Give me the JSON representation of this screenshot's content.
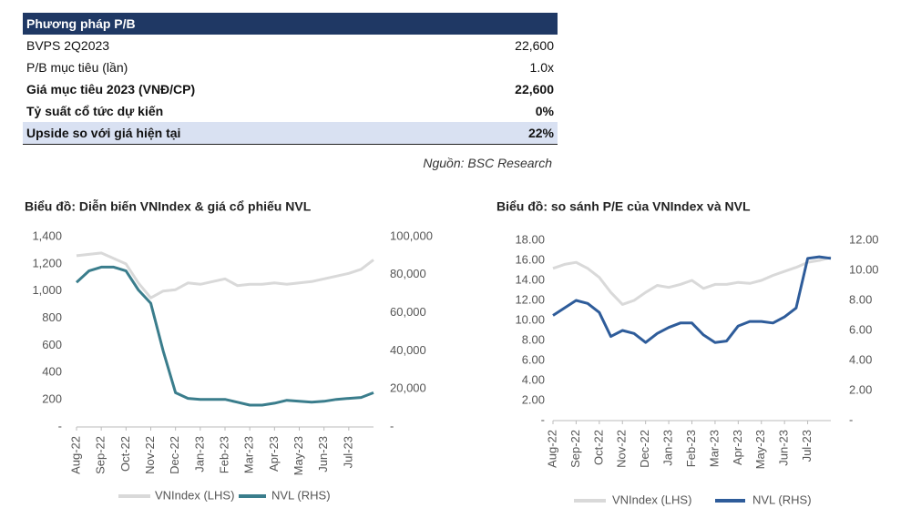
{
  "table": {
    "title": "Phương pháp P/B",
    "rows": [
      {
        "label": "BVPS 2Q2023",
        "value": "22,600",
        "bold": false,
        "highlight": false
      },
      {
        "label": "P/B mục tiêu (lần)",
        "value": "1.0x",
        "bold": false,
        "highlight": false
      },
      {
        "label": "Giá mục tiêu 2023 (VNĐ/CP)",
        "value": "22,600",
        "bold": true,
        "highlight": false
      },
      {
        "label": "Tỷ suất cổ tức dự kiến",
        "value": "0%",
        "bold": true,
        "highlight": false
      },
      {
        "label": "Upside so với giá hiện tại",
        "value": "22%",
        "bold": true,
        "highlight": true
      }
    ],
    "source": "Nguồn: BSC Research"
  },
  "chart_data": [
    {
      "type": "line",
      "title": "Biểu đồ: Diễn biến VNIndex & giá cổ phiếu NVL",
      "categories": [
        "Aug-22",
        null,
        "Sep-22",
        null,
        "Oct-22",
        null,
        "Nov-22",
        null,
        "Dec-22",
        null,
        "Jan-23",
        null,
        "Feb-23",
        null,
        "Mar-23",
        null,
        "Apr-23",
        null,
        "May-23",
        null,
        "Jun-23",
        null,
        "Jul-23",
        null,
        null
      ],
      "ylim": [
        0,
        1400
      ],
      "yticks": [
        {
          "value": 0,
          "label": "-"
        },
        200,
        400,
        600,
        800,
        {
          "value": 1000,
          "label": "1,000"
        },
        {
          "value": 1200,
          "label": "1,200"
        },
        {
          "value": 1400,
          "label": "1,400"
        }
      ],
      "y2lim": [
        0,
        100000
      ],
      "y2ticks": [
        {
          "value": 0,
          "label": "-"
        },
        {
          "value": 20000,
          "label": "20,000"
        },
        {
          "value": 40000,
          "label": "40,000"
        },
        {
          "value": 60000,
          "label": "60,000"
        },
        {
          "value": 80000,
          "label": "80,000"
        },
        {
          "value": 100000,
          "label": "100,000"
        }
      ],
      "series": [
        {
          "name": "VNIndex (LHS)",
          "color": "#d9d9d9",
          "values": [
            1260,
            1270,
            1280,
            1240,
            1200,
            1060,
            950,
            1000,
            1010,
            1060,
            1050,
            1070,
            1090,
            1040,
            1050,
            1050,
            1060,
            1050,
            1060,
            1070,
            1090,
            1110,
            1130,
            1160,
            1230
          ]
        },
        {
          "name": "NVL (RHS)",
          "color": "#3a7d8c",
          "axis": "y2",
          "values": [
            76000,
            82000,
            84000,
            84000,
            82000,
            72000,
            65000,
            40000,
            18000,
            15000,
            14500,
            14500,
            14500,
            13000,
            11500,
            11500,
            12500,
            14000,
            13500,
            13000,
            13500,
            14500,
            15000,
            15500,
            18000
          ]
        }
      ]
    },
    {
      "type": "line",
      "title": "Biểu đồ: so sánh P/E của VNIndex và NVL",
      "categories": [
        "Aug-22",
        null,
        "Sep-22",
        null,
        "Oct-22",
        null,
        "Nov-22",
        null,
        "Dec-22",
        null,
        "Jan-23",
        null,
        "Feb-23",
        null,
        "Mar-23",
        null,
        "Apr-23",
        null,
        "May-23",
        null,
        "Jun-23",
        null,
        "Jul-23",
        null,
        null
      ],
      "ylim": [
        0,
        18
      ],
      "yticks": [
        {
          "value": 0,
          "label": "-"
        },
        {
          "value": 2,
          "label": "2.00"
        },
        {
          "value": 4,
          "label": "4.00"
        },
        {
          "value": 6,
          "label": "6.00"
        },
        {
          "value": 8,
          "label": "8.00"
        },
        {
          "value": 10,
          "label": "10.00"
        },
        {
          "value": 12,
          "label": "12.00"
        },
        {
          "value": 14,
          "label": "14.00"
        },
        {
          "value": 16,
          "label": "16.00"
        },
        {
          "value": 18,
          "label": "18.00"
        }
      ],
      "y2lim": [
        0,
        12
      ],
      "y2ticks": [
        {
          "value": 0,
          "label": "-"
        },
        {
          "value": 2,
          "label": "2.00"
        },
        {
          "value": 4,
          "label": "4.00"
        },
        {
          "value": 6,
          "label": "6.00"
        },
        {
          "value": 8,
          "label": "8.00"
        },
        {
          "value": 10,
          "label": "10.00"
        },
        {
          "value": 12,
          "label": "12.00"
        }
      ],
      "series": [
        {
          "name": "VNIndex (LHS)",
          "color": "#d9d9d9",
          "values": [
            15.2,
            15.6,
            15.8,
            15.2,
            14.3,
            12.8,
            11.6,
            12.0,
            12.8,
            13.5,
            13.3,
            13.6,
            14.0,
            13.2,
            13.6,
            13.6,
            13.8,
            13.7,
            14.0,
            14.5,
            14.9,
            15.3,
            15.8,
            16.0,
            16.3
          ]
        },
        {
          "name": "NVL (RHS)",
          "color": "#2e5c9a",
          "axis": "y2",
          "values": [
            7.0,
            7.5,
            8.0,
            7.8,
            7.2,
            5.6,
            6.0,
            5.8,
            5.2,
            5.8,
            6.2,
            6.5,
            6.5,
            5.7,
            5.2,
            5.3,
            6.3,
            6.6,
            6.6,
            6.5,
            6.9,
            7.5,
            10.8,
            10.9,
            10.8
          ]
        }
      ]
    }
  ]
}
